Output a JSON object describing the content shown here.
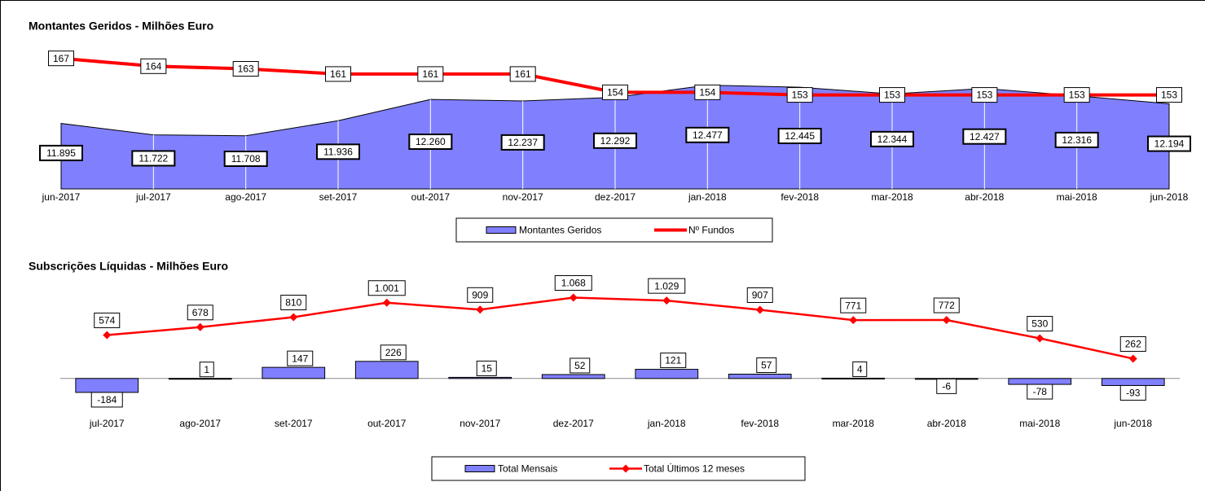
{
  "chart_data": [
    {
      "type": "combo",
      "title": "Montantes Geridos - Milhões Euro",
      "categories": [
        "jun-2017",
        "jul-2017",
        "ago-2017",
        "set-2017",
        "out-2017",
        "nov-2017",
        "dez-2017",
        "jan-2018",
        "fev-2018",
        "mar-2018",
        "abr-2018",
        "mai-2018",
        "jun-2018"
      ],
      "ylim": [
        10900,
        13400
      ],
      "y2lim": [
        117,
        180
      ],
      "series": [
        {
          "name": "Montantes Geridos",
          "type": "area",
          "color": "#8080ff",
          "values": [
            11895,
            11722,
            11708,
            11936,
            12260,
            12237,
            12292,
            12477,
            12445,
            12344,
            12427,
            12316,
            12194
          ],
          "value_labels": [
            "11.895",
            "11.722",
            "11.708",
            "11.936",
            "12.260",
            "12.237",
            "12.292",
            "12.477",
            "12.445",
            "12.344",
            "12.427",
            "12.316",
            "12.194"
          ]
        },
        {
          "name": "Nº Fundos",
          "type": "line",
          "axis": "y2",
          "color": "#ff0000",
          "values": [
            167,
            164,
            163,
            161,
            161,
            161,
            154,
            154,
            153,
            153,
            153,
            153,
            153
          ]
        }
      ]
    },
    {
      "type": "combo",
      "title": "Subscrições Líquidas - Milhões Euro",
      "categories": [
        "jul-2017",
        "ago-2017",
        "set-2017",
        "out-2017",
        "nov-2017",
        "dez-2017",
        "jan-2018",
        "fev-2018",
        "mar-2018",
        "abr-2018",
        "mai-2018",
        "jun-2018"
      ],
      "ylim": [
        -400,
        1450
      ],
      "series": [
        {
          "name": "Total Mensais",
          "type": "bar",
          "color": "#8080ff",
          "values": [
            -184,
            1,
            147,
            226,
            15,
            52,
            121,
            57,
            4,
            -6,
            -78,
            -93
          ]
        },
        {
          "name": "Total Últimos 12 meses",
          "type": "line",
          "marker": "diamond",
          "color": "#ff0000",
          "values": [
            574,
            678,
            810,
            1001,
            909,
            1068,
            1029,
            907,
            771,
            772,
            530,
            262
          ],
          "value_labels": [
            "574",
            "678",
            "810",
            "1.001",
            "909",
            "1.068",
            "1.029",
            "907",
            "771",
            "772",
            "530",
            "262"
          ]
        }
      ]
    }
  ]
}
